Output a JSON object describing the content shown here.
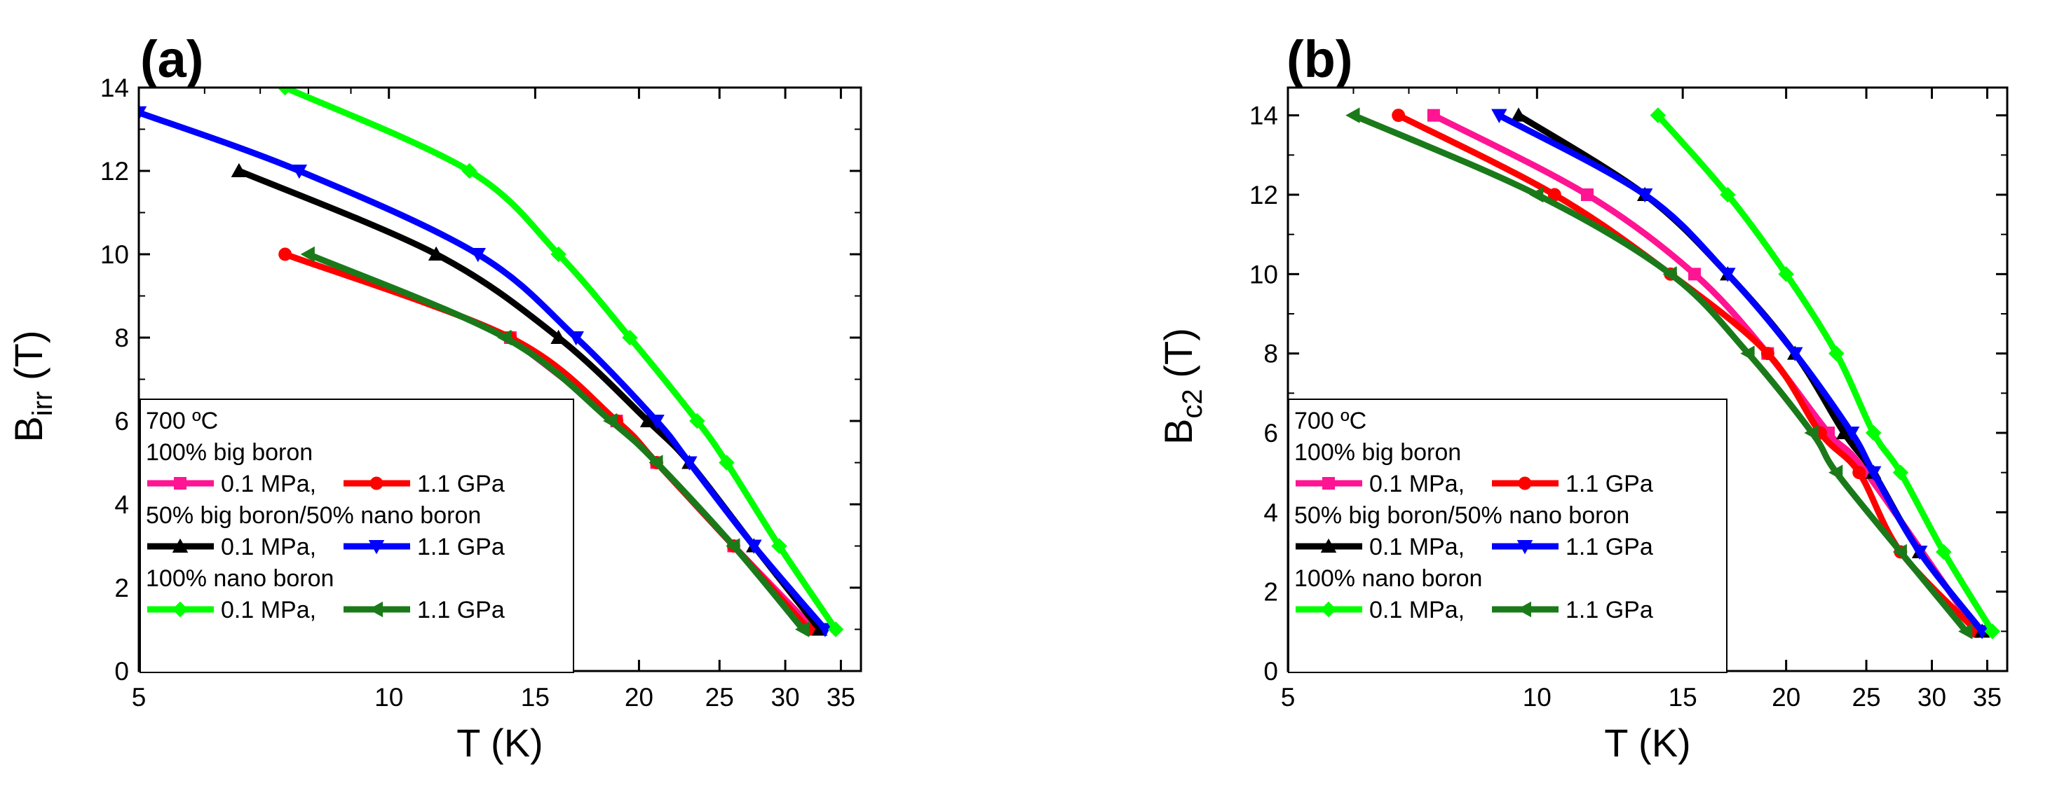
{
  "figure": {
    "panels": [
      "(a)",
      "(b)"
    ]
  },
  "chart_data": [
    {
      "type": "line",
      "panel_label": "(a)",
      "xlabel": "T (K)",
      "ylabel_main": "B",
      "ylabel_sub": "irr",
      "ylabel_tail": " (T)",
      "x_scale": "log",
      "xlim": [
        5,
        37
      ],
      "ylim": [
        0,
        14
      ],
      "xticks": [
        5,
        10,
        15,
        20,
        25,
        30,
        35
      ],
      "xtick_labels": [
        "5",
        "10",
        "15",
        "20",
        "25",
        "30",
        "35"
      ],
      "yticks": [
        0,
        2,
        4,
        6,
        8,
        10,
        12,
        14
      ],
      "ytick_labels": [
        "0",
        "2",
        "4",
        "6",
        "8",
        "10",
        "12",
        "14"
      ],
      "legend": {
        "placement": "bottom-left",
        "condition": "700 ºC",
        "groups": [
          {
            "heading": "100% big boron",
            "entries": [
              "0.1 MPa,",
              "1.1 GPa"
            ]
          },
          {
            "heading": "50% big boron/50% nano boron",
            "entries": [
              "0.1 MPa,",
              "1.1 GPa"
            ]
          },
          {
            "heading": "100% nano boron",
            "entries": [
              "0.1 MPa,",
              "1.1 GPa"
            ]
          }
        ]
      },
      "series": [
        {
          "name": "100% big boron 0.1 MPa",
          "color": "#ff1493",
          "marker": "square",
          "x": [
            14.0,
            18.8,
            21.0,
            26.0,
            32.5
          ],
          "y": [
            8,
            6,
            5,
            3,
            1
          ]
        },
        {
          "name": "100% big boron 1.1 GPa",
          "color": "#ff0000",
          "marker": "circle",
          "x": [
            7.5,
            14.0,
            18.8,
            21.0,
            26.0,
            32.0
          ],
          "y": [
            10,
            8,
            6,
            5,
            3,
            1
          ]
        },
        {
          "name": "50% big/50% nano 0.1 MPa",
          "color": "#000000",
          "marker": "triangle-up",
          "x": [
            6.6,
            11.4,
            16.0,
            20.5,
            23.0,
            27.5,
            33.0
          ],
          "y": [
            12,
            10,
            8,
            6,
            5,
            3,
            1
          ]
        },
        {
          "name": "50% big/50% nano 1.1 GPa",
          "color": "#0000ff",
          "marker": "triangle-down",
          "x": [
            5.0,
            7.8,
            12.8,
            16.8,
            21.0,
            23.0,
            27.5,
            33.5
          ],
          "y": [
            13.4,
            12,
            10,
            8,
            6,
            5,
            3,
            1
          ]
        },
        {
          "name": "100% nano boron 0.1 MPa",
          "color": "#00ff00",
          "marker": "diamond",
          "x": [
            7.5,
            12.5,
            16.0,
            19.5,
            23.5,
            25.5,
            29.5,
            34.5
          ],
          "y": [
            14,
            12,
            10,
            8,
            6,
            5,
            3,
            1
          ]
        },
        {
          "name": "100% nano boron 1.1 GPa",
          "color": "#1a7a1a",
          "marker": "triangle-left",
          "x": [
            8.0,
            13.8,
            18.5,
            21.0,
            26.0,
            31.5
          ],
          "y": [
            10,
            8,
            6,
            5,
            3,
            1
          ]
        }
      ]
    },
    {
      "type": "line",
      "panel_label": "(b)",
      "xlabel": "T (K)",
      "ylabel_main": "B",
      "ylabel_sub": "c2",
      "ylabel_tail": " (T)",
      "x_scale": "log",
      "xlim": [
        5,
        37
      ],
      "ylim": [
        0,
        14.7
      ],
      "xticks": [
        5,
        10,
        15,
        20,
        25,
        30,
        35
      ],
      "xtick_labels": [
        "5",
        "10",
        "15",
        "20",
        "25",
        "30",
        "35"
      ],
      "yticks": [
        0,
        2,
        4,
        6,
        8,
        10,
        12,
        14
      ],
      "ytick_labels": [
        "0",
        "2",
        "4",
        "6",
        "8",
        "10",
        "12",
        "14"
      ],
      "legend": {
        "placement": "bottom-left",
        "condition": "700 ºC",
        "groups": [
          {
            "heading": "100% big boron",
            "entries": [
              "0.1 MPa,",
              "1.1 GPa"
            ]
          },
          {
            "heading": "50% big boron/50% nano boron",
            "entries": [
              "0.1 MPa,",
              "1.1 GPa"
            ]
          },
          {
            "heading": "100% nano boron",
            "entries": [
              "0.1 MPa,",
              "1.1 GPa"
            ]
          }
        ]
      },
      "series": [
        {
          "name": "100% big boron 0.1 MPa",
          "color": "#ff1493",
          "marker": "square",
          "x": [
            7.5,
            11.5,
            15.5,
            19.0,
            22.5,
            25.0,
            34.0
          ],
          "y": [
            14,
            12,
            10,
            8,
            6,
            5,
            1
          ]
        },
        {
          "name": "100% big boron 1.1 GPa",
          "color": "#ff0000",
          "marker": "circle",
          "x": [
            6.8,
            10.5,
            14.5,
            19.0,
            22.0,
            24.5,
            27.5,
            34.0
          ],
          "y": [
            14,
            12,
            10,
            8,
            6,
            5,
            3,
            1
          ]
        },
        {
          "name": "50% big/50% nano 0.1 MPa",
          "color": "#000000",
          "marker": "triangle-up",
          "x": [
            9.5,
            13.5,
            17.0,
            20.5,
            23.5,
            25.5,
            29.0,
            34.5
          ],
          "y": [
            14,
            12,
            10,
            8,
            6,
            5,
            3,
            1
          ]
        },
        {
          "name": "50% big/50% nano 1.1 GPa",
          "color": "#0000ff",
          "marker": "triangle-down",
          "x": [
            9.0,
            13.5,
            17.0,
            20.5,
            24.0,
            25.5,
            29.0,
            34.5
          ],
          "y": [
            14,
            12,
            10,
            8,
            6,
            5,
            3,
            1
          ]
        },
        {
          "name": "100% nano boron 0.1 MPa",
          "color": "#00ff00",
          "marker": "diamond",
          "x": [
            14.0,
            17.0,
            20.0,
            23.0,
            25.5,
            27.5,
            31.0,
            35.5
          ],
          "y": [
            14,
            12,
            10,
            8,
            6,
            5,
            3,
            1
          ]
        },
        {
          "name": "100% nano boron 1.1 GPa",
          "color": "#1a7a1a",
          "marker": "triangle-left",
          "x": [
            6.0,
            10.0,
            14.5,
            18.0,
            21.5,
            23.0,
            27.5,
            33.0
          ],
          "y": [
            14,
            12,
            10,
            8,
            6,
            5,
            3,
            1
          ]
        }
      ]
    }
  ]
}
